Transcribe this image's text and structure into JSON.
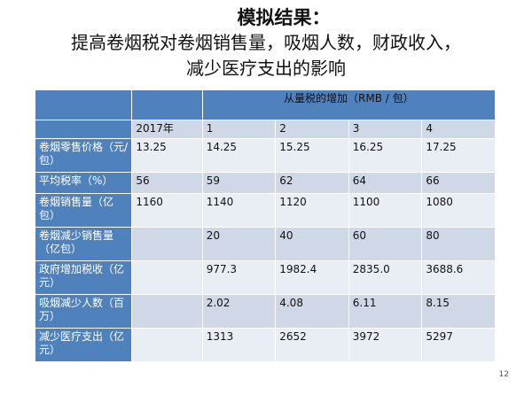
{
  "slide": {
    "title_line1": "模拟结果：",
    "title_line2": "提高卷烟税对卷烟销售量，吸烟人数，财政收入，",
    "title_line3": "减少医疗支出的影响",
    "page_number": "12"
  },
  "table": {
    "header_span": "从量税的增加（RMB / 包）",
    "columns": [
      "2017年",
      "1",
      "2",
      "3",
      "4"
    ],
    "rows": [
      {
        "label": "卷烟零售价格（元/包）",
        "values": [
          "13.25",
          "14.25",
          "15.25",
          "16.25",
          "17.25"
        ]
      },
      {
        "label": "平均税率（%）",
        "values": [
          "56",
          "59",
          "62",
          "64",
          "66"
        ]
      },
      {
        "label": "卷烟销售量（亿包）",
        "values": [
          "1160",
          "1140",
          "1120",
          "1100",
          "1080"
        ]
      },
      {
        "label": "卷烟减少销售量（亿包）",
        "values": [
          "",
          "20",
          "40",
          "60",
          "80"
        ]
      },
      {
        "label": "政府增加税收（亿元）",
        "values": [
          "",
          "977.3",
          "1982.4",
          "2835.0",
          "3688.6"
        ]
      },
      {
        "label": "吸烟减少人数（百万）",
        "values": [
          "",
          "2.02",
          "4.08",
          "6.11",
          "8.15"
        ]
      },
      {
        "label": "减少医疗支出（亿元）",
        "values": [
          "",
          "1313",
          "2652",
          "3972",
          "5297"
        ]
      }
    ]
  },
  "colors": {
    "header_blue": "#4f81bd",
    "row_light": "#d0d8e8",
    "row_lighter": "#e9edf4"
  }
}
